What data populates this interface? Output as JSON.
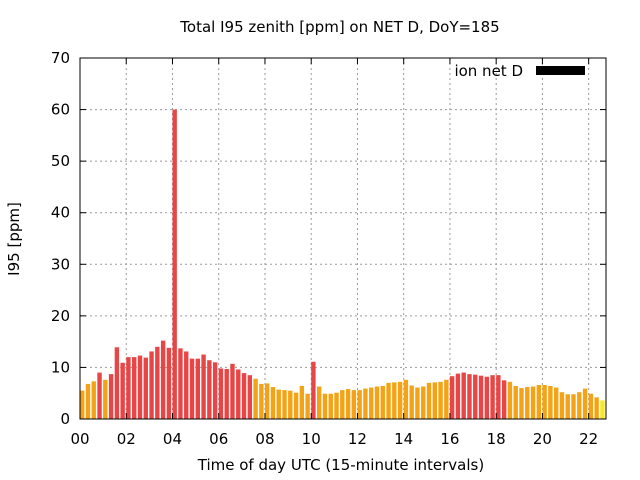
{
  "chart_data": {
    "type": "bar",
    "title": "Total I95 zenith [ppm] on NET D, DoY=185",
    "xlabel": "Time of day UTC (15-minute intervals)",
    "ylabel": "I95 [ppm]",
    "ylim": [
      0,
      70
    ],
    "xlim": [
      0,
      22.75
    ],
    "grid": true,
    "legend_position": "top-right",
    "legend": [
      {
        "label": "ion net D",
        "color": "#000000"
      }
    ],
    "y_ticks": [
      0,
      10,
      20,
      30,
      40,
      50,
      60,
      70
    ],
    "x_ticks": [
      {
        "value": 0,
        "label": "00"
      },
      {
        "value": 2,
        "label": "02"
      },
      {
        "value": 4,
        "label": "04"
      },
      {
        "value": 6,
        "label": "06"
      },
      {
        "value": 8,
        "label": "08"
      },
      {
        "value": 10,
        "label": "10"
      },
      {
        "value": 12,
        "label": "12"
      },
      {
        "value": 14,
        "label": "14"
      },
      {
        "value": 16,
        "label": "16"
      },
      {
        "value": 18,
        "label": "18"
      },
      {
        "value": 20,
        "label": "20"
      },
      {
        "value": 22,
        "label": "22"
      }
    ],
    "interval_hours": 0.25,
    "colors": {
      "yellow": "#f5e82a",
      "orange": "#f5a316",
      "red": "#e84646"
    },
    "bars": [
      {
        "x": 0.0,
        "value": 5.5,
        "color": "orange"
      },
      {
        "x": 0.25,
        "value": 6.8,
        "color": "orange"
      },
      {
        "x": 0.5,
        "value": 7.3,
        "color": "orange"
      },
      {
        "x": 0.75,
        "value": 9.0,
        "color": "red"
      },
      {
        "x": 1.0,
        "value": 7.6,
        "color": "orange"
      },
      {
        "x": 1.25,
        "value": 8.7,
        "color": "red"
      },
      {
        "x": 1.5,
        "value": 13.9,
        "color": "red"
      },
      {
        "x": 1.75,
        "value": 10.9,
        "color": "red"
      },
      {
        "x": 2.0,
        "value": 12.0,
        "color": "red"
      },
      {
        "x": 2.25,
        "value": 12.0,
        "color": "red"
      },
      {
        "x": 2.5,
        "value": 12.3,
        "color": "red"
      },
      {
        "x": 2.75,
        "value": 11.9,
        "color": "red"
      },
      {
        "x": 3.0,
        "value": 13.1,
        "color": "red"
      },
      {
        "x": 3.25,
        "value": 14.0,
        "color": "red"
      },
      {
        "x": 3.5,
        "value": 15.2,
        "color": "red"
      },
      {
        "x": 3.75,
        "value": 13.8,
        "color": "red"
      },
      {
        "x": 4.0,
        "value": 60.0,
        "color": "red"
      },
      {
        "x": 4.25,
        "value": 13.7,
        "color": "red"
      },
      {
        "x": 4.5,
        "value": 13.1,
        "color": "red"
      },
      {
        "x": 4.75,
        "value": 11.7,
        "color": "red"
      },
      {
        "x": 5.0,
        "value": 11.7,
        "color": "red"
      },
      {
        "x": 5.25,
        "value": 12.5,
        "color": "red"
      },
      {
        "x": 5.5,
        "value": 11.4,
        "color": "red"
      },
      {
        "x": 5.75,
        "value": 11.0,
        "color": "red"
      },
      {
        "x": 6.0,
        "value": 9.8,
        "color": "red"
      },
      {
        "x": 6.25,
        "value": 9.7,
        "color": "red"
      },
      {
        "x": 6.5,
        "value": 10.7,
        "color": "red"
      },
      {
        "x": 6.75,
        "value": 9.6,
        "color": "red"
      },
      {
        "x": 7.0,
        "value": 8.9,
        "color": "red"
      },
      {
        "x": 7.25,
        "value": 8.5,
        "color": "red"
      },
      {
        "x": 7.5,
        "value": 7.8,
        "color": "orange"
      },
      {
        "x": 7.75,
        "value": 6.8,
        "color": "orange"
      },
      {
        "x": 8.0,
        "value": 6.9,
        "color": "orange"
      },
      {
        "x": 8.25,
        "value": 6.2,
        "color": "orange"
      },
      {
        "x": 8.5,
        "value": 5.7,
        "color": "orange"
      },
      {
        "x": 8.75,
        "value": 5.6,
        "color": "orange"
      },
      {
        "x": 9.0,
        "value": 5.5,
        "color": "orange"
      },
      {
        "x": 9.25,
        "value": 5.1,
        "color": "orange"
      },
      {
        "x": 9.5,
        "value": 6.4,
        "color": "orange"
      },
      {
        "x": 9.75,
        "value": 4.9,
        "color": "orange"
      },
      {
        "x": 10.0,
        "value": 11.1,
        "color": "red"
      },
      {
        "x": 10.25,
        "value": 6.3,
        "color": "orange"
      },
      {
        "x": 10.5,
        "value": 4.9,
        "color": "orange"
      },
      {
        "x": 10.75,
        "value": 4.9,
        "color": "orange"
      },
      {
        "x": 11.0,
        "value": 5.1,
        "color": "orange"
      },
      {
        "x": 11.25,
        "value": 5.6,
        "color": "orange"
      },
      {
        "x": 11.5,
        "value": 5.8,
        "color": "orange"
      },
      {
        "x": 11.75,
        "value": 5.6,
        "color": "orange"
      },
      {
        "x": 12.0,
        "value": 5.6,
        "color": "orange"
      },
      {
        "x": 12.25,
        "value": 5.9,
        "color": "orange"
      },
      {
        "x": 12.5,
        "value": 6.1,
        "color": "orange"
      },
      {
        "x": 12.75,
        "value": 6.3,
        "color": "orange"
      },
      {
        "x": 13.0,
        "value": 6.4,
        "color": "orange"
      },
      {
        "x": 13.25,
        "value": 7.0,
        "color": "orange"
      },
      {
        "x": 13.5,
        "value": 7.1,
        "color": "orange"
      },
      {
        "x": 13.75,
        "value": 7.2,
        "color": "orange"
      },
      {
        "x": 14.0,
        "value": 7.6,
        "color": "orange"
      },
      {
        "x": 14.25,
        "value": 6.5,
        "color": "orange"
      },
      {
        "x": 14.5,
        "value": 6.1,
        "color": "orange"
      },
      {
        "x": 14.75,
        "value": 6.3,
        "color": "orange"
      },
      {
        "x": 15.0,
        "value": 7.0,
        "color": "orange"
      },
      {
        "x": 15.25,
        "value": 7.1,
        "color": "orange"
      },
      {
        "x": 15.5,
        "value": 7.2,
        "color": "orange"
      },
      {
        "x": 15.75,
        "value": 7.6,
        "color": "orange"
      },
      {
        "x": 16.0,
        "value": 8.3,
        "color": "red"
      },
      {
        "x": 16.25,
        "value": 8.8,
        "color": "red"
      },
      {
        "x": 16.5,
        "value": 9.0,
        "color": "red"
      },
      {
        "x": 16.75,
        "value": 8.7,
        "color": "red"
      },
      {
        "x": 17.0,
        "value": 8.6,
        "color": "red"
      },
      {
        "x": 17.25,
        "value": 8.4,
        "color": "red"
      },
      {
        "x": 17.5,
        "value": 8.2,
        "color": "red"
      },
      {
        "x": 17.75,
        "value": 8.5,
        "color": "red"
      },
      {
        "x": 18.0,
        "value": 8.5,
        "color": "red"
      },
      {
        "x": 18.25,
        "value": 7.5,
        "color": "red"
      },
      {
        "x": 18.5,
        "value": 7.2,
        "color": "orange"
      },
      {
        "x": 18.75,
        "value": 6.4,
        "color": "orange"
      },
      {
        "x": 19.0,
        "value": 6.0,
        "color": "orange"
      },
      {
        "x": 19.25,
        "value": 6.2,
        "color": "orange"
      },
      {
        "x": 19.5,
        "value": 6.3,
        "color": "orange"
      },
      {
        "x": 19.75,
        "value": 6.6,
        "color": "orange"
      },
      {
        "x": 20.0,
        "value": 6.6,
        "color": "orange"
      },
      {
        "x": 20.25,
        "value": 6.4,
        "color": "orange"
      },
      {
        "x": 20.5,
        "value": 6.1,
        "color": "orange"
      },
      {
        "x": 20.75,
        "value": 5.2,
        "color": "orange"
      },
      {
        "x": 21.0,
        "value": 4.8,
        "color": "orange"
      },
      {
        "x": 21.25,
        "value": 4.8,
        "color": "orange"
      },
      {
        "x": 21.5,
        "value": 5.2,
        "color": "orange"
      },
      {
        "x": 21.75,
        "value": 5.9,
        "color": "orange"
      },
      {
        "x": 22.0,
        "value": 4.9,
        "color": "orange"
      },
      {
        "x": 22.25,
        "value": 4.2,
        "color": "orange"
      },
      {
        "x": 22.5,
        "value": 3.6,
        "color": "yellow"
      }
    ]
  }
}
